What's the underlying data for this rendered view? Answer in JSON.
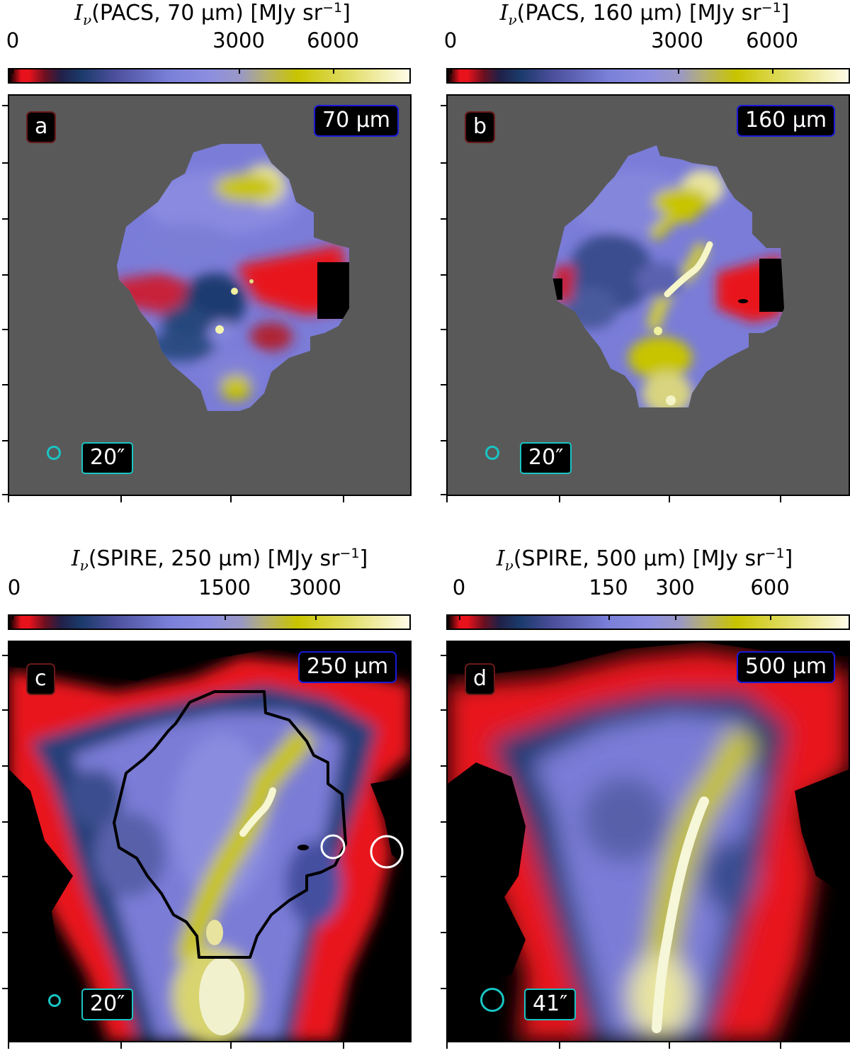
{
  "panels": [
    {
      "id": "a",
      "colorbar_title_band": "PACS, 70 μm",
      "colorbar_ticks": [
        "0",
        "3000",
        "6000"
      ],
      "band_label": "70 μm",
      "beam_label": "20″"
    },
    {
      "id": "b",
      "colorbar_title_band": "PACS, 160 μm",
      "colorbar_ticks": [
        "0",
        "3000",
        "6000"
      ],
      "band_label": "160 μm",
      "beam_label": "20″"
    },
    {
      "id": "c",
      "colorbar_title_band": "SPIRE, 250 μm",
      "colorbar_ticks": [
        "0",
        "1500",
        "3000"
      ],
      "band_label": "250 μm",
      "beam_label": "20″"
    },
    {
      "id": "d",
      "colorbar_title_band": "SPIRE, 500 μm",
      "colorbar_ticks": [
        "0",
        "150",
        "300",
        "600"
      ],
      "band_label": "500 μm",
      "beam_label": "41″"
    }
  ],
  "colorbar_unit": "[MJy sr",
  "colorbar_unit_exp": "−1",
  "colorbar_unit_close": "]",
  "colors": {
    "background_gray": "#595959",
    "beam": "#19c4c4",
    "band_border": "#1a1ad8",
    "label_border": "#6a1a1a"
  }
}
